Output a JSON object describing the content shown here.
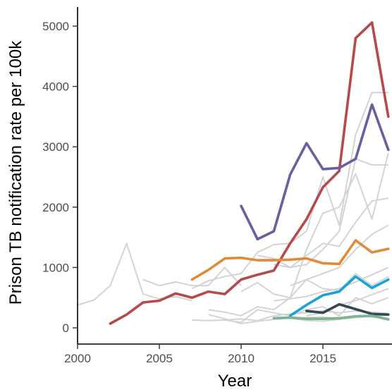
{
  "chart_data": {
    "type": "line",
    "title": "",
    "xlabel": "Year",
    "ylabel": "Prison TB notification rate per 100k",
    "xlim": [
      2000,
      2019
    ],
    "ylim": [
      -250,
      5300
    ],
    "x_ticks": [
      {
        "value": 2000,
        "label": "2000"
      },
      {
        "value": 2005,
        "label": "2005"
      },
      {
        "value": 2010,
        "label": "2010"
      },
      {
        "value": 2015,
        "label": "2015"
      }
    ],
    "y_ticks": [
      {
        "value": 0,
        "label": "0"
      },
      {
        "value": 1000,
        "label": "1000"
      },
      {
        "value": 2000,
        "label": "2000"
      },
      {
        "value": 3000,
        "label": "3000"
      },
      {
        "value": 4000,
        "label": "4000"
      },
      {
        "value": 5000,
        "label": "5000"
      }
    ],
    "grid": false,
    "legend": "none",
    "background_series_color": "#d3d3d3",
    "background_series": [
      {
        "x": [
          2000,
          2001,
          2002,
          2003,
          2004,
          2005,
          2006,
          2007
        ],
        "y": [
          380,
          460,
          700,
          1400,
          560,
          480,
          520,
          450
        ]
      },
      {
        "x": [
          2004,
          2005,
          2006,
          2007,
          2008,
          2009,
          2010
        ],
        "y": [
          800,
          700,
          760,
          700,
          700,
          1000,
          700
        ]
      },
      {
        "x": [
          2007,
          2008,
          2009,
          2010,
          2011,
          2012,
          2013,
          2014,
          2015,
          2016,
          2017,
          2018,
          2019
        ],
        "y": [
          650,
          780,
          850,
          900,
          1250,
          1380,
          1400,
          1600,
          2500,
          1700,
          3200,
          3900,
          3900
        ]
      },
      {
        "x": [
          2008,
          2009,
          2010,
          2011,
          2012,
          2013,
          2014,
          2015,
          2016,
          2017,
          2018,
          2019
        ],
        "y": [
          300,
          260,
          200,
          350,
          300,
          500,
          1300,
          1900,
          2000,
          2550,
          1800,
          2900
        ]
      },
      {
        "x": [
          2011,
          2012,
          2013,
          2014,
          2015,
          2016,
          2017,
          2018,
          2019
        ],
        "y": [
          1200,
          1150,
          1000,
          1050,
          1300,
          1600,
          2800,
          2700,
          2700
        ]
      },
      {
        "x": [
          2012,
          2013,
          2014,
          2015,
          2016,
          2017,
          2018,
          2019
        ],
        "y": [
          1050,
          1000,
          1200,
          1400,
          1350,
          1750,
          2100,
          2150
        ]
      },
      {
        "x": [
          2013,
          2014,
          2015,
          2016,
          2017,
          2018,
          2019
        ],
        "y": [
          700,
          800,
          900,
          1000,
          1300,
          1550,
          1700
        ]
      },
      {
        "x": [
          2009,
          2010,
          2011,
          2012,
          2013,
          2014,
          2015,
          2016,
          2017,
          2018,
          2019
        ],
        "y": [
          130,
          90,
          300,
          250,
          200,
          300,
          350,
          200,
          500,
          400,
          500
        ]
      },
      {
        "x": [
          2007,
          2008,
          2009,
          2010,
          2011,
          2012,
          2013,
          2014,
          2015,
          2016,
          2017,
          2018,
          2019
        ],
        "y": [
          130,
          120,
          130,
          150,
          120,
          200,
          230,
          250,
          280,
          250,
          280,
          260,
          240
        ]
      },
      {
        "x": [
          2010,
          2011,
          2012,
          2013,
          2014,
          2015,
          2016,
          2017,
          2018,
          2019
        ],
        "y": [
          600,
          750,
          560,
          500,
          800,
          650,
          620,
          900,
          700,
          850
        ]
      },
      {
        "x": [
          2012,
          2013,
          2014,
          2015,
          2016,
          2017,
          2018,
          2019
        ],
        "y": [
          450,
          480,
          520,
          600,
          650,
          760,
          880,
          1000
        ]
      },
      {
        "x": [
          2014,
          2015,
          2016,
          2017,
          2018,
          2019
        ],
        "y": [
          200,
          250,
          380,
          450,
          550,
          650
        ]
      },
      {
        "x": [
          2008,
          2009,
          2010,
          2011,
          2012,
          2013,
          2014,
          2015,
          2016,
          2017,
          2018,
          2019
        ],
        "y": [
          220,
          150,
          70,
          110,
          140,
          160,
          170,
          180,
          150,
          200,
          180,
          160
        ]
      },
      {
        "x": [
          2012,
          2013,
          2014,
          2015,
          2016,
          2017,
          2018,
          2019
        ],
        "y": [
          150,
          160,
          120,
          110,
          140,
          170,
          190,
          210
        ]
      }
    ],
    "series": [
      {
        "color": "#b5494b",
        "x": [
          2002,
          2003,
          2004,
          2005,
          2006,
          2007,
          2008,
          2009,
          2010,
          2011,
          2012,
          2013,
          2014,
          2015,
          2016,
          2017,
          2018,
          2019
        ],
        "y": [
          70,
          220,
          420,
          450,
          570,
          500,
          600,
          560,
          800,
          880,
          950,
          1400,
          1800,
          2330,
          2600,
          4800,
          5060,
          3500
        ]
      },
      {
        "color": "#6a5f9e",
        "x": [
          2010,
          2011,
          2012,
          2013,
          2014,
          2015,
          2016,
          2017,
          2018,
          2019
        ],
        "y": [
          2020,
          1470,
          1600,
          2540,
          3060,
          2630,
          2650,
          2800,
          3700,
          2950
        ]
      },
      {
        "color": "#e08b3a",
        "x": [
          2007,
          2008,
          2009,
          2010,
          2011,
          2012,
          2013,
          2014,
          2015,
          2016,
          2017,
          2018,
          2019
        ],
        "y": [
          800,
          960,
          1150,
          1160,
          1120,
          1120,
          1130,
          1150,
          1070,
          1060,
          1450,
          1250,
          1310
        ]
      },
      {
        "color": "#1aa3d6",
        "x": [
          2013,
          2014,
          2015,
          2016,
          2017,
          2018,
          2019
        ],
        "y": [
          200,
          380,
          540,
          600,
          850,
          660,
          800
        ]
      },
      {
        "color": "#34494f",
        "x": [
          2014,
          2015,
          2016,
          2017,
          2018,
          2019
        ],
        "y": [
          280,
          250,
          390,
          310,
          230,
          220
        ]
      },
      {
        "color": "#7bb394",
        "x": [
          2012,
          2013,
          2014,
          2015,
          2016,
          2017,
          2018,
          2019
        ],
        "y": [
          160,
          170,
          150,
          150,
          160,
          190,
          200,
          140
        ]
      }
    ]
  }
}
